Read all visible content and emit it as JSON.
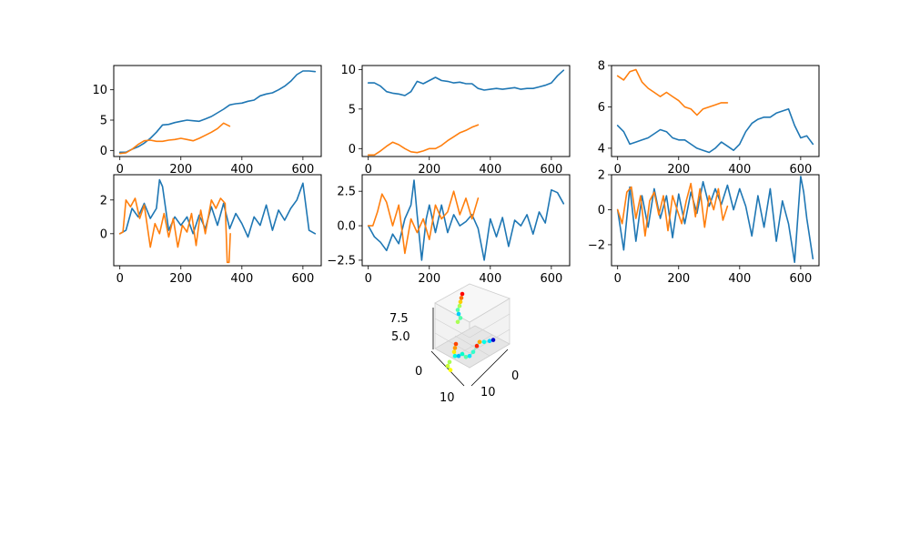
{
  "colors": {
    "series_a": "#1f77b4",
    "series_b": "#ff7f0e"
  },
  "chart_data": [
    {
      "type": "line",
      "panel": "row1-col1",
      "xlim": [
        -20,
        660
      ],
      "ylim": [
        -1,
        14
      ],
      "xticks": [
        0,
        200,
        400,
        600
      ],
      "yticks": [
        0,
        5,
        10
      ],
      "tick_labels_x": [
        "0",
        "200",
        "400",
        "600"
      ],
      "tick_labels_y": [
        "0",
        "5",
        "10"
      ],
      "series": [
        {
          "color_key": "series_a",
          "x": [
            0,
            20,
            40,
            60,
            80,
            100,
            120,
            140,
            160,
            180,
            200,
            220,
            240,
            260,
            280,
            300,
            320,
            340,
            360,
            380,
            400,
            420,
            440,
            460,
            480,
            500,
            520,
            540,
            560,
            580,
            600,
            620,
            640
          ],
          "y": [
            -0.3,
            -0.3,
            0.2,
            0.6,
            1.2,
            2.0,
            3.0,
            4.2,
            4.3,
            4.6,
            4.8,
            5.0,
            4.9,
            4.8,
            5.2,
            5.6,
            6.2,
            6.8,
            7.5,
            7.7,
            7.8,
            8.1,
            8.3,
            9.0,
            9.3,
            9.5,
            10.0,
            10.6,
            11.4,
            12.5,
            13.1,
            13.1,
            13.0
          ]
        },
        {
          "color_key": "series_b",
          "x": [
            0,
            20,
            40,
            60,
            80,
            100,
            120,
            140,
            160,
            180,
            200,
            220,
            240,
            260,
            280,
            300,
            320,
            340,
            360
          ],
          "y": [
            -0.5,
            -0.4,
            0.2,
            1.0,
            1.6,
            1.7,
            1.5,
            1.5,
            1.7,
            1.8,
            2.0,
            1.8,
            1.6,
            2.0,
            2.5,
            3.0,
            3.6,
            4.5,
            4.0
          ]
        }
      ]
    },
    {
      "type": "line",
      "panel": "row1-col2",
      "xlim": [
        -20,
        660
      ],
      "ylim": [
        -1,
        10.5
      ],
      "xticks": [
        0,
        200,
        400,
        600
      ],
      "yticks": [
        0,
        5,
        10
      ],
      "tick_labels_x": [
        "0",
        "200",
        "400",
        "600"
      ],
      "tick_labels_y": [
        "0",
        "5",
        "10"
      ],
      "series": [
        {
          "color_key": "series_a",
          "x": [
            0,
            20,
            40,
            60,
            80,
            100,
            120,
            140,
            160,
            180,
            200,
            220,
            240,
            260,
            280,
            300,
            320,
            340,
            360,
            380,
            400,
            420,
            440,
            460,
            480,
            500,
            520,
            540,
            560,
            580,
            600,
            620,
            640
          ],
          "y": [
            8.3,
            8.3,
            7.9,
            7.2,
            7.0,
            6.9,
            6.7,
            7.2,
            8.5,
            8.2,
            8.6,
            9.0,
            8.6,
            8.5,
            8.3,
            8.4,
            8.2,
            8.2,
            7.6,
            7.4,
            7.5,
            7.6,
            7.5,
            7.6,
            7.7,
            7.5,
            7.6,
            7.6,
            7.8,
            8.0,
            8.3,
            9.2,
            9.9
          ]
        },
        {
          "color_key": "series_b",
          "x": [
            0,
            20,
            40,
            60,
            80,
            100,
            120,
            140,
            160,
            180,
            200,
            220,
            240,
            260,
            280,
            300,
            320,
            340,
            360
          ],
          "y": [
            -0.8,
            -0.8,
            -0.3,
            0.3,
            0.8,
            0.5,
            0.0,
            -0.4,
            -0.5,
            -0.3,
            0.0,
            0.0,
            0.4,
            1.0,
            1.5,
            2.0,
            2.3,
            2.7,
            3.0
          ]
        }
      ]
    },
    {
      "type": "line",
      "panel": "row1-col3",
      "xlim": [
        -20,
        660
      ],
      "ylim": [
        3.6,
        8
      ],
      "xticks": [
        0,
        200,
        400,
        600
      ],
      "yticks": [
        4,
        6,
        8
      ],
      "tick_labels_x": [
        "0",
        "200",
        "400",
        "600"
      ],
      "tick_labels_y": [
        "4",
        "6",
        "8"
      ],
      "series": [
        {
          "color_key": "series_a",
          "x": [
            0,
            20,
            40,
            60,
            80,
            100,
            120,
            140,
            160,
            180,
            200,
            220,
            240,
            260,
            280,
            300,
            320,
            340,
            360,
            380,
            400,
            420,
            440,
            460,
            480,
            500,
            520,
            540,
            560,
            580,
            600,
            620,
            640
          ],
          "y": [
            5.1,
            4.8,
            4.2,
            4.3,
            4.4,
            4.5,
            4.7,
            4.9,
            4.8,
            4.5,
            4.4,
            4.4,
            4.2,
            4.0,
            3.9,
            3.8,
            4.0,
            4.3,
            4.1,
            3.9,
            4.2,
            4.8,
            5.2,
            5.4,
            5.5,
            5.5,
            5.7,
            5.8,
            5.9,
            5.1,
            4.5,
            4.6,
            4.2
          ]
        },
        {
          "color_key": "series_b",
          "x": [
            0,
            20,
            40,
            60,
            80,
            100,
            120,
            140,
            160,
            180,
            200,
            220,
            240,
            260,
            280,
            300,
            320,
            340,
            360
          ],
          "y": [
            7.5,
            7.3,
            7.7,
            7.8,
            7.2,
            6.9,
            6.7,
            6.5,
            6.7,
            6.5,
            6.3,
            6.0,
            5.9,
            5.6,
            5.9,
            6.0,
            6.1,
            6.2,
            6.2
          ]
        }
      ]
    },
    {
      "type": "line",
      "panel": "row2-col1",
      "xlim": [
        -20,
        660
      ],
      "ylim": [
        -1.9,
        3.5
      ],
      "xticks": [
        0,
        200,
        400,
        600
      ],
      "yticks": [
        0,
        2
      ],
      "tick_labels_x": [
        "0",
        "200",
        "400",
        "600"
      ],
      "tick_labels_y": [
        "0",
        "2"
      ],
      "series": [
        {
          "color_key": "series_a",
          "x": [
            0,
            20,
            40,
            60,
            80,
            100,
            120,
            130,
            140,
            160,
            180,
            200,
            220,
            240,
            260,
            280,
            300,
            320,
            340,
            360,
            380,
            400,
            420,
            440,
            460,
            480,
            500,
            520,
            540,
            560,
            580,
            600,
            620,
            640
          ],
          "y": [
            0.0,
            0.2,
            1.5,
            1.0,
            1.8,
            0.9,
            1.5,
            3.2,
            2.8,
            0.2,
            1.0,
            0.5,
            1.0,
            0.0,
            1.1,
            0.3,
            1.6,
            0.5,
            1.8,
            0.3,
            1.2,
            0.6,
            -0.2,
            1.0,
            0.5,
            1.7,
            0.2,
            1.4,
            0.8,
            1.5,
            2.0,
            3.0,
            0.2,
            0.0
          ]
        },
        {
          "color_key": "series_b",
          "x": [
            0,
            10,
            20,
            35,
            50,
            65,
            80,
            100,
            115,
            130,
            145,
            160,
            175,
            190,
            205,
            220,
            235,
            250,
            265,
            280,
            300,
            315,
            330,
            345,
            352,
            358,
            362
          ],
          "y": [
            0.0,
            0.1,
            2.0,
            1.6,
            2.1,
            0.9,
            1.7,
            -0.8,
            0.6,
            0.0,
            1.2,
            -0.2,
            0.9,
            -0.8,
            0.5,
            0.1,
            1.2,
            -0.7,
            1.4,
            0.0,
            2.0,
            1.5,
            2.1,
            1.8,
            -1.7,
            -1.7,
            0.0
          ]
        }
      ]
    },
    {
      "type": "line",
      "panel": "row2-col2",
      "xlim": [
        -20,
        660
      ],
      "ylim": [
        -2.9,
        3.7
      ],
      "xticks": [
        0,
        200,
        400,
        600
      ],
      "yticks": [
        -2.5,
        0.0,
        2.5
      ],
      "tick_labels_x": [
        "0",
        "200",
        "400",
        "600"
      ],
      "tick_labels_y": [
        "−2.5",
        "0.0",
        "2.5"
      ],
      "series": [
        {
          "color_key": "series_a",
          "x": [
            0,
            20,
            40,
            60,
            80,
            100,
            120,
            140,
            150,
            160,
            175,
            190,
            200,
            220,
            240,
            260,
            280,
            300,
            320,
            340,
            360,
            380,
            400,
            420,
            440,
            460,
            480,
            500,
            520,
            540,
            560,
            580,
            600,
            620,
            640
          ],
          "y": [
            0.0,
            -0.8,
            -1.2,
            -1.8,
            -0.6,
            -1.3,
            0.5,
            1.5,
            3.3,
            0.8,
            -2.5,
            0.5,
            1.5,
            -0.5,
            1.5,
            -0.5,
            0.8,
            0.0,
            0.3,
            0.8,
            -0.2,
            -2.5,
            0.5,
            -0.8,
            0.6,
            -1.5,
            0.4,
            0.0,
            0.8,
            -0.6,
            1.0,
            0.2,
            2.6,
            2.4,
            1.6
          ]
        },
        {
          "color_key": "series_b",
          "x": [
            0,
            15,
            30,
            45,
            60,
            80,
            100,
            120,
            140,
            160,
            180,
            200,
            220,
            240,
            260,
            280,
            300,
            320,
            340,
            360
          ],
          "y": [
            0.0,
            0.0,
            1.0,
            2.3,
            1.7,
            0.0,
            1.5,
            -2.0,
            0.5,
            -0.5,
            0.5,
            -1.0,
            1.5,
            0.5,
            1.0,
            2.5,
            0.8,
            2.0,
            0.5,
            2.0
          ]
        }
      ]
    },
    {
      "type": "line",
      "panel": "row2-col3",
      "xlim": [
        -20,
        660
      ],
      "ylim": [
        -3.2,
        2.0
      ],
      "xticks": [
        0,
        200,
        400,
        600
      ],
      "yticks": [
        -2,
        0,
        2
      ],
      "tick_labels_x": [
        "0",
        "200",
        "400",
        "600"
      ],
      "tick_labels_y": [
        "−2",
        "0",
        "2"
      ],
      "series": [
        {
          "color_key": "series_a",
          "x": [
            0,
            20,
            40,
            60,
            80,
            100,
            120,
            140,
            160,
            180,
            200,
            220,
            240,
            260,
            280,
            300,
            320,
            340,
            360,
            380,
            400,
            420,
            440,
            460,
            480,
            500,
            520,
            540,
            560,
            580,
            600,
            610,
            620,
            640
          ],
          "y": [
            0.0,
            -2.3,
            1.3,
            -1.8,
            0.8,
            -1.0,
            1.2,
            -0.5,
            0.8,
            -1.6,
            0.9,
            -0.8,
            1.0,
            -0.2,
            1.6,
            0.2,
            1.2,
            0.3,
            1.4,
            0.0,
            1.2,
            0.2,
            -1.5,
            0.8,
            -1.0,
            1.2,
            -1.8,
            0.5,
            -0.8,
            -3.0,
            1.9,
            1.0,
            -0.5,
            -2.8
          ]
        },
        {
          "color_key": "series_b",
          "x": [
            0,
            15,
            30,
            45,
            60,
            75,
            90,
            105,
            120,
            135,
            150,
            165,
            180,
            195,
            210,
            225,
            240,
            255,
            270,
            285,
            300,
            315,
            330,
            345,
            360
          ],
          "y": [
            0.0,
            -0.8,
            1.0,
            1.3,
            -0.5,
            0.8,
            -1.5,
            0.5,
            1.0,
            -0.3,
            0.8,
            -1.2,
            0.8,
            0.0,
            -0.8,
            0.5,
            1.5,
            -0.4,
            1.2,
            -1.0,
            0.8,
            0.0,
            1.2,
            -0.6,
            0.2
          ]
        }
      ]
    },
    {
      "type": "scatter3d",
      "panel": "row3-col2",
      "z_ticks": [
        "7.5",
        "5.0"
      ],
      "x_ticks": [
        "0",
        "10"
      ],
      "y_ticks": [
        "0",
        "10"
      ],
      "colormap": "jet",
      "points": [
        {
          "p": [
            0.38,
            0.1
          ],
          "c": "#ff0000"
        },
        {
          "p": [
            0.37,
            0.14
          ],
          "c": "#ff6a00"
        },
        {
          "p": [
            0.36,
            0.18
          ],
          "c": "#ffcc00"
        },
        {
          "p": [
            0.35,
            0.22
          ],
          "c": "#aaff55"
        },
        {
          "p": [
            0.33,
            0.26
          ],
          "c": "#55ffaa"
        },
        {
          "p": [
            0.34,
            0.3
          ],
          "c": "#00ccff"
        },
        {
          "p": [
            0.36,
            0.34
          ],
          "c": "#55ffaa"
        },
        {
          "p": [
            0.33,
            0.38
          ],
          "c": "#aaff55"
        },
        {
          "p": [
            0.31,
            0.6
          ],
          "c": "#ff4400"
        },
        {
          "p": [
            0.3,
            0.64
          ],
          "c": "#ff9900"
        },
        {
          "p": [
            0.29,
            0.68
          ],
          "c": "#ffee00"
        },
        {
          "p": [
            0.3,
            0.72
          ],
          "c": "#00ffdd"
        },
        {
          "p": [
            0.34,
            0.72
          ],
          "c": "#00bbff"
        },
        {
          "p": [
            0.38,
            0.7
          ],
          "c": "#00ffcc"
        },
        {
          "p": [
            0.42,
            0.73
          ],
          "c": "#55ffaa"
        },
        {
          "p": [
            0.46,
            0.72
          ],
          "c": "#00e5ff"
        },
        {
          "p": [
            0.5,
            0.68
          ],
          "c": "#33ffcc"
        },
        {
          "p": [
            0.54,
            0.62
          ],
          "c": "#ff2200"
        },
        {
          "p": [
            0.57,
            0.58
          ],
          "c": "#ffaa00"
        },
        {
          "p": [
            0.62,
            0.58
          ],
          "c": "#00ffee"
        },
        {
          "p": [
            0.68,
            0.57
          ],
          "c": "#00ccff"
        },
        {
          "p": [
            0.72,
            0.56
          ],
          "c": "#0000cc"
        },
        {
          "p": [
            0.24,
            0.78
          ],
          "c": "#aaff55"
        },
        {
          "p": [
            0.22,
            0.82
          ],
          "c": "#ccff33"
        },
        {
          "p": [
            0.25,
            0.86
          ],
          "c": "#ffff00"
        }
      ]
    }
  ]
}
